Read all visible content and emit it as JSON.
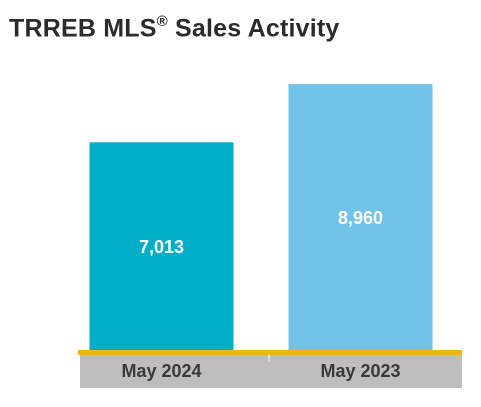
{
  "title": {
    "text": "TRREB MLS",
    "registered": "®",
    "suffix": " Sales Activity"
  },
  "colors": {
    "title": "#2b2b2b",
    "axis_line": "#f0b21f",
    "category_band": "#bdbdbd",
    "category_text": "#3a3a3a",
    "data_label": "#ffffff"
  },
  "chart_data": {
    "type": "bar",
    "title": "TRREB MLS® Sales Activity",
    "categories": [
      "May 2024",
      "May 2023"
    ],
    "values": [
      7013,
      8960
    ],
    "value_labels": [
      "7,013",
      "8,960"
    ],
    "bar_colors": [
      "#00aec7",
      "#72c3e8"
    ],
    "ylim": [
      0,
      10000
    ],
    "grid": false,
    "legend": "none"
  }
}
